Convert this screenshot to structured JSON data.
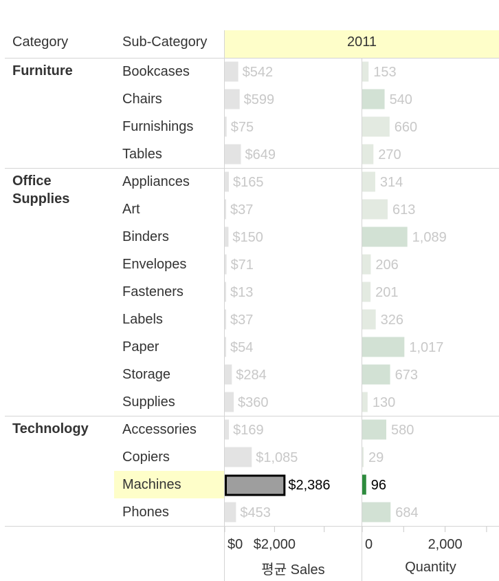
{
  "header": {
    "category_label": "Category",
    "subcategory_label": "Sub-Category",
    "year": "2011"
  },
  "categories": [
    {
      "name": "Furniture"
    },
    {
      "name": "Office\nSupplies"
    },
    {
      "name": "Technology"
    }
  ],
  "chart_data": {
    "type": "bar",
    "orientation": "horizontal",
    "column_header": "2011",
    "categories": [
      "Bookcases",
      "Chairs",
      "Furnishings",
      "Tables",
      "Appliances",
      "Art",
      "Binders",
      "Envelopes",
      "Fasteners",
      "Labels",
      "Paper",
      "Storage",
      "Supplies",
      "Accessories",
      "Copiers",
      "Machines",
      "Phones"
    ],
    "groups": [
      {
        "category": "Furniture",
        "subcategories": [
          "Bookcases",
          "Chairs",
          "Furnishings",
          "Tables"
        ]
      },
      {
        "category": "Office Supplies",
        "subcategories": [
          "Appliances",
          "Art",
          "Binders",
          "Envelopes",
          "Fasteners",
          "Labels",
          "Paper",
          "Storage",
          "Supplies"
        ]
      },
      {
        "category": "Technology",
        "subcategories": [
          "Accessories",
          "Copiers",
          "Machines",
          "Phones"
        ]
      }
    ],
    "highlighted": "Machines",
    "series": [
      {
        "name": "평균 Sales",
        "values": [
          542,
          599,
          75,
          649,
          165,
          37,
          150,
          71,
          13,
          37,
          54,
          284,
          360,
          169,
          1085,
          2386,
          453
        ],
        "labels": [
          "$542",
          "$599",
          "$75",
          "$649",
          "$165",
          "$37",
          "$150",
          "$71",
          "$13",
          "$37",
          "$54",
          "$284",
          "$360",
          "$169",
          "$1,085",
          "$2,386",
          "$453"
        ],
        "xlim": [
          0,
          5500
        ],
        "ticks": [
          {
            "value": 0,
            "label": "$0"
          },
          {
            "value": 2000,
            "label": "$2,000"
          },
          {
            "value": 4000,
            "label": ""
          }
        ],
        "xlabel": "평균 Sales"
      },
      {
        "name": "Quantity",
        "values": [
          153,
          540,
          660,
          270,
          314,
          613,
          1089,
          206,
          201,
          326,
          1017,
          673,
          130,
          580,
          29,
          96,
          684
        ],
        "labels": [
          "153",
          "540",
          "660",
          "270",
          "314",
          "613",
          "1,089",
          "206",
          "201",
          "326",
          "1,017",
          "673",
          "130",
          "580",
          "29",
          "96",
          "684"
        ],
        "xlim": [
          0,
          3300
        ],
        "ticks": [
          {
            "value": 0,
            "label": "0"
          },
          {
            "value": 1000,
            "label": ""
          },
          {
            "value": 2000,
            "label": "2,000"
          },
          {
            "value": 3000,
            "label": ""
          }
        ],
        "xlabel": "Quantity"
      }
    ],
    "colors": {
      "sales_bar": "#e3e3e3",
      "sales_bar_selected": "#9e9e9e",
      "qty_bar_light": "#e3eae1",
      "qty_bar_medium": "#d2e1d4",
      "qty_bar_selected": "#2e8b3e",
      "faded_label": "#c8c8c8",
      "highlight": "#fefec9"
    }
  }
}
